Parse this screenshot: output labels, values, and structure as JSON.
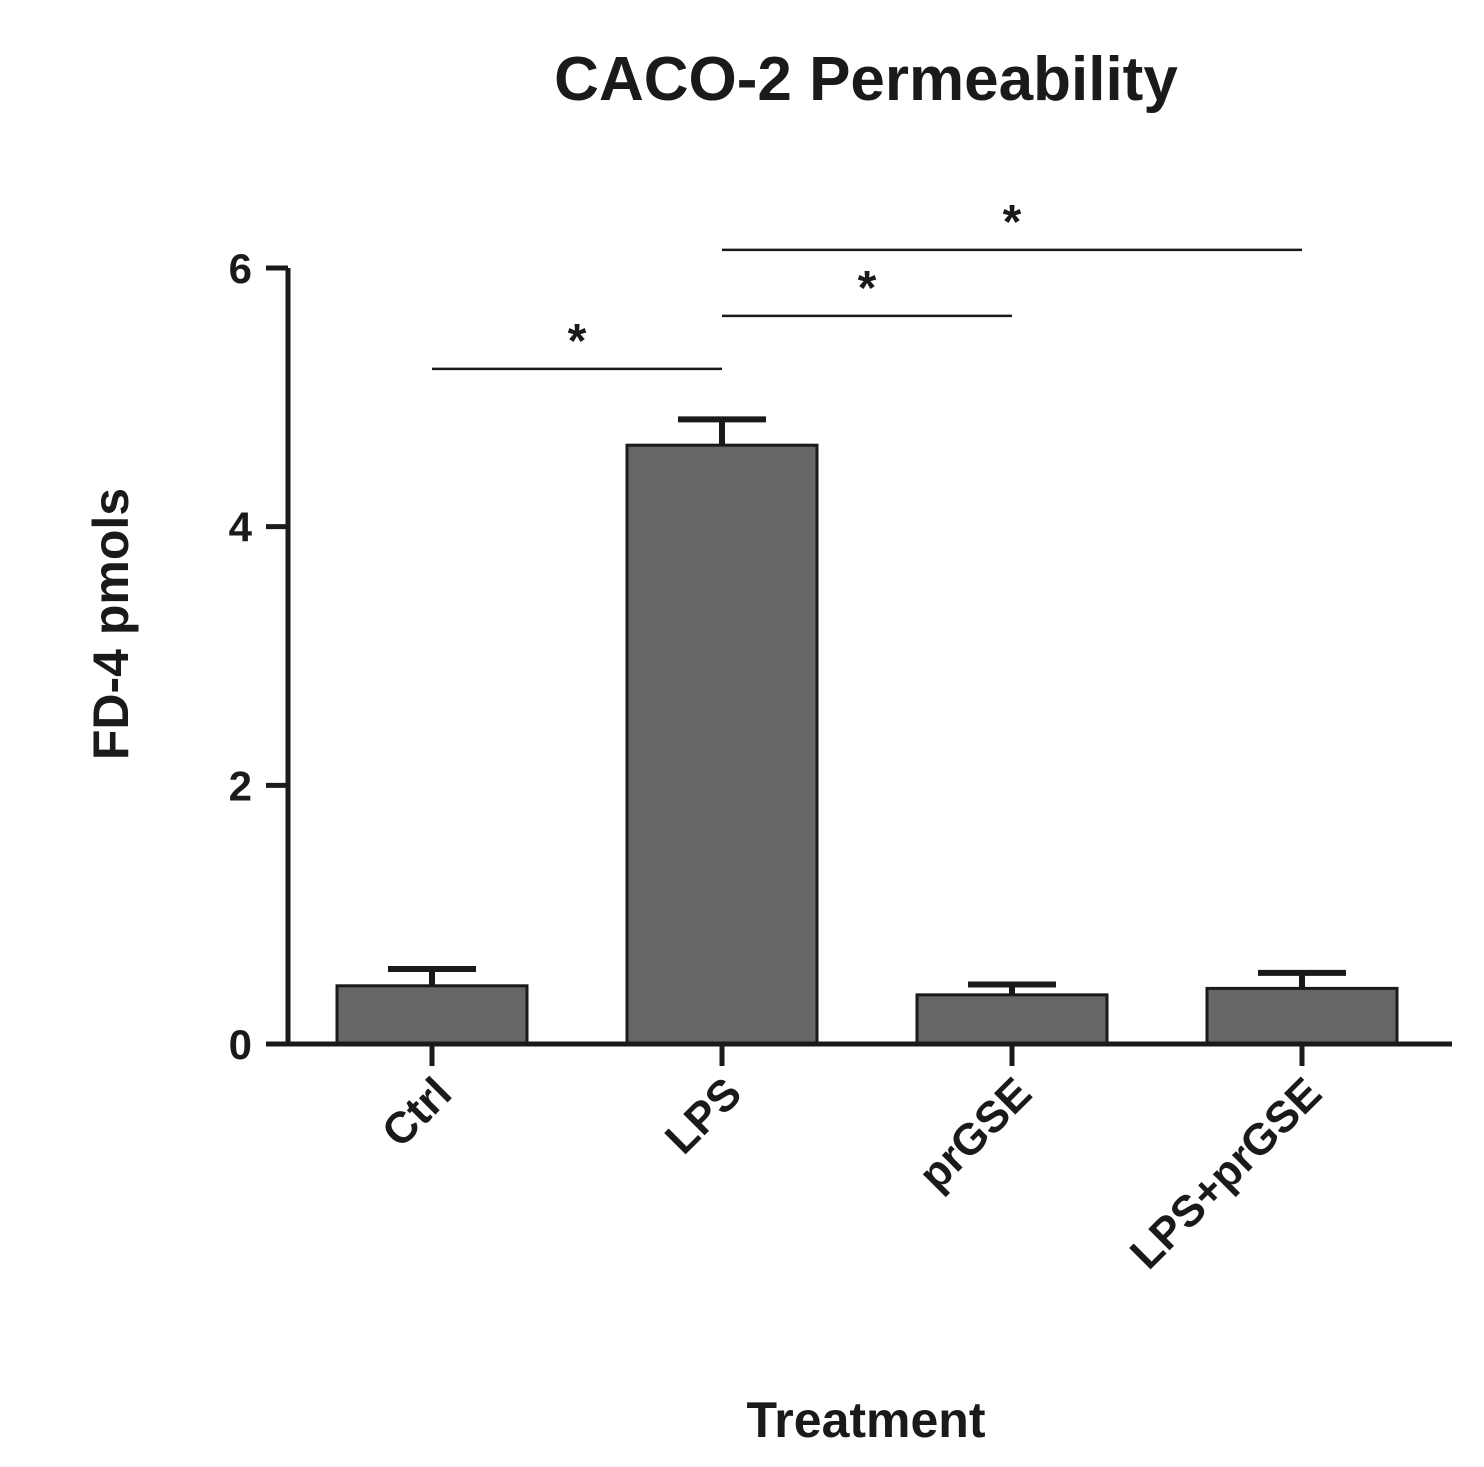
{
  "chart_data": {
    "type": "bar",
    "title": "CACO-2 Permeability",
    "xlabel": "Treatment",
    "ylabel": "FD-4 pmols",
    "categories": [
      "Ctrl",
      "LPS",
      "prGSE",
      "LPS+prGSE"
    ],
    "values": [
      0.45,
      4.63,
      0.38,
      0.43
    ],
    "errors": [
      0.13,
      0.2,
      0.08,
      0.12
    ],
    "ylim": [
      0,
      6
    ],
    "yticks": [
      "0",
      "2",
      "4",
      "6"
    ],
    "bar_color": "#666666",
    "grid": false,
    "legend": "none",
    "significance": [
      {
        "from": "Ctrl",
        "to": "LPS",
        "label": "*",
        "level": 5.22
      },
      {
        "from": "LPS",
        "to": "prGSE",
        "label": "*",
        "level": 5.63
      },
      {
        "from": "LPS",
        "to": "LPS+prGSE",
        "label": "*",
        "level": 6.14
      }
    ]
  }
}
